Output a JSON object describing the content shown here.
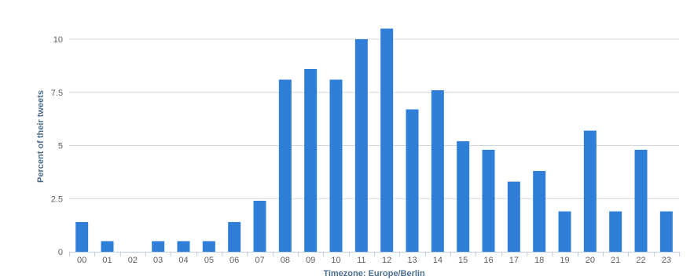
{
  "chart_data": {
    "type": "bar",
    "categories": [
      "00",
      "01",
      "02",
      "03",
      "04",
      "05",
      "06",
      "07",
      "08",
      "09",
      "10",
      "11",
      "12",
      "13",
      "14",
      "15",
      "16",
      "17",
      "18",
      "19",
      "20",
      "21",
      "22",
      "23"
    ],
    "values": [
      1.4,
      0.5,
      0,
      0.5,
      0.5,
      0.5,
      1.4,
      2.4,
      8.1,
      8.6,
      8.1,
      10.0,
      10.5,
      6.7,
      7.6,
      5.2,
      4.8,
      3.3,
      3.8,
      1.9,
      5.7,
      1.9,
      4.8,
      1.9
    ],
    "xlabel": "Timezone: Europe/Berlin",
    "ylabel": "Percent of their tweets",
    "ylim": [
      0,
      10.85
    ],
    "yticks": [
      0,
      2.5,
      5,
      7.5,
      10
    ],
    "ytick_labels": [
      "0",
      "2.5",
      "5",
      "7.5",
      "10"
    ],
    "grid": "horizontal",
    "legend": "none",
    "colors": {
      "bar": "#2f7ed8",
      "grid": "#d8d8d8",
      "axis_line": "#c0d0e0",
      "tick_text": "#606060",
      "axis_title": "#4d6f8f"
    }
  }
}
